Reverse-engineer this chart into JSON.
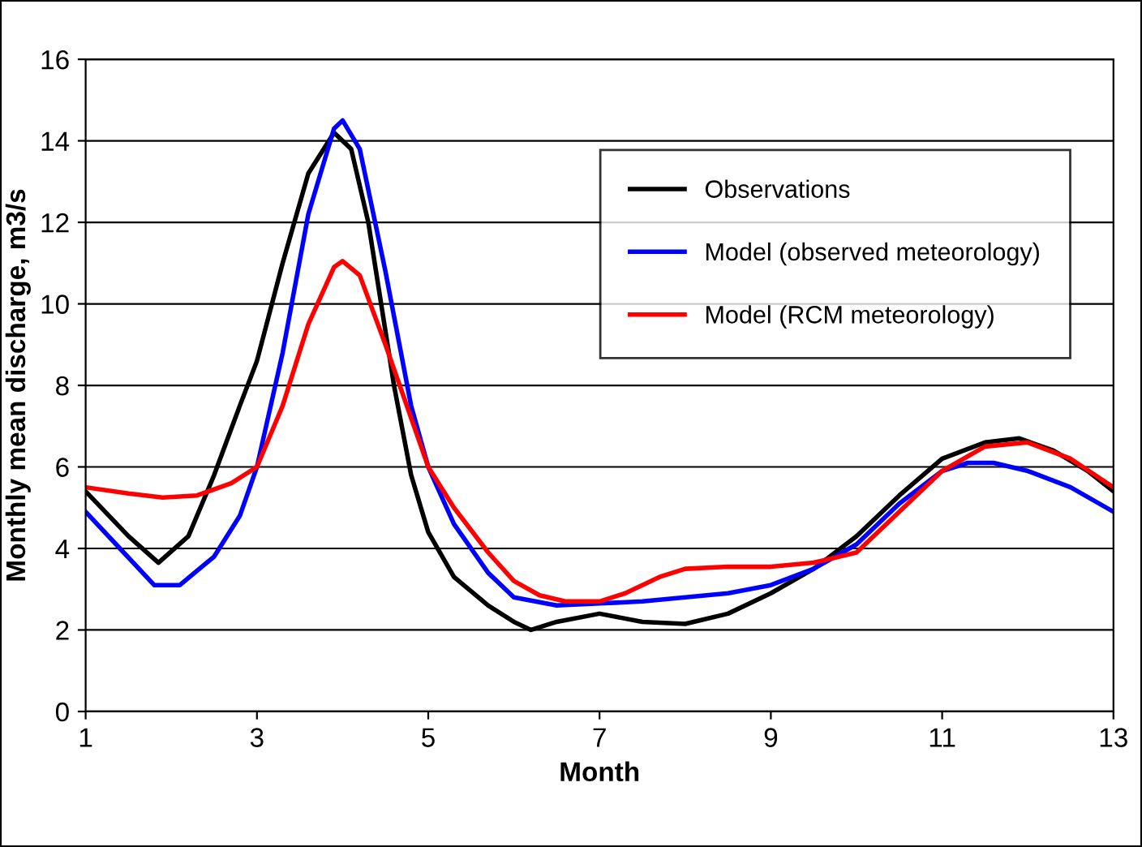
{
  "chart_data": {
    "type": "line",
    "xlabel": "Month",
    "ylabel": "Monthly mean discharge, m3/s",
    "xlim": [
      1,
      13
    ],
    "xticks": [
      1,
      3,
      5,
      7,
      9,
      11,
      13
    ],
    "ylim": [
      0,
      16
    ],
    "yticks": [
      0,
      2,
      4,
      6,
      8,
      10,
      12,
      14,
      16
    ],
    "grid": "y",
    "legend": "top right",
    "marker": "none",
    "line_style": "solid",
    "series": [
      {
        "name": "Observations",
        "color": "#000000",
        "x": [
          1,
          1.5,
          1.85,
          2.2,
          2.5,
          2.8,
          3,
          3.3,
          3.6,
          3.9,
          4.1,
          4.3,
          4.6,
          4.8,
          5,
          5.3,
          5.7,
          6,
          6.2,
          6.5,
          7,
          7.5,
          8,
          8.5,
          9,
          9.5,
          10,
          10.5,
          11,
          11.5,
          11.9,
          12.3,
          12.7,
          13
        ],
        "values": [
          5.4,
          4.3,
          3.65,
          4.3,
          5.8,
          7.5,
          8.6,
          11,
          13.2,
          14.2,
          13.8,
          12,
          8,
          5.8,
          4.4,
          3.3,
          2.6,
          2.2,
          2.0,
          2.2,
          2.4,
          2.2,
          2.15,
          2.4,
          2.9,
          3.5,
          4.3,
          5.3,
          6.2,
          6.6,
          6.7,
          6.4,
          5.9,
          5.4
        ]
      },
      {
        "name": "Model (observed meteorology)",
        "color": "#0000ff",
        "x": [
          1,
          1.4,
          1.8,
          2.1,
          2.5,
          2.8,
          3,
          3.3,
          3.6,
          3.9,
          4.0,
          4.2,
          4.5,
          4.8,
          5,
          5.3,
          5.7,
          6,
          6.5,
          7,
          7.5,
          8,
          8.5,
          9,
          9.5,
          10,
          10.5,
          11,
          11.3,
          11.6,
          12,
          12.5,
          13
        ],
        "values": [
          4.9,
          4.0,
          3.1,
          3.1,
          3.8,
          4.8,
          6.0,
          8.8,
          12.2,
          14.3,
          14.5,
          13.8,
          10.8,
          7.5,
          6.0,
          4.6,
          3.4,
          2.8,
          2.6,
          2.65,
          2.7,
          2.8,
          2.9,
          3.1,
          3.5,
          4.1,
          5.1,
          5.9,
          6.1,
          6.1,
          5.9,
          5.5,
          4.9
        ]
      },
      {
        "name": "Model (RCM meteorology)",
        "color": "#ff0000",
        "x": [
          1,
          1.5,
          1.9,
          2.3,
          2.7,
          3,
          3.3,
          3.6,
          3.9,
          4.0,
          4.2,
          4.5,
          4.8,
          5,
          5.3,
          5.7,
          6,
          6.3,
          6.6,
          7,
          7.3,
          7.7,
          8,
          8.5,
          9,
          9.5,
          10,
          10.5,
          11,
          11.5,
          12,
          12.5,
          13
        ],
        "values": [
          5.5,
          5.35,
          5.25,
          5.3,
          5.6,
          6.0,
          7.5,
          9.5,
          10.9,
          11.05,
          10.7,
          9,
          7.2,
          6.0,
          5.0,
          3.9,
          3.2,
          2.85,
          2.7,
          2.7,
          2.9,
          3.3,
          3.5,
          3.55,
          3.55,
          3.65,
          3.9,
          4.9,
          5.9,
          6.5,
          6.6,
          6.2,
          5.5
        ]
      }
    ]
  }
}
